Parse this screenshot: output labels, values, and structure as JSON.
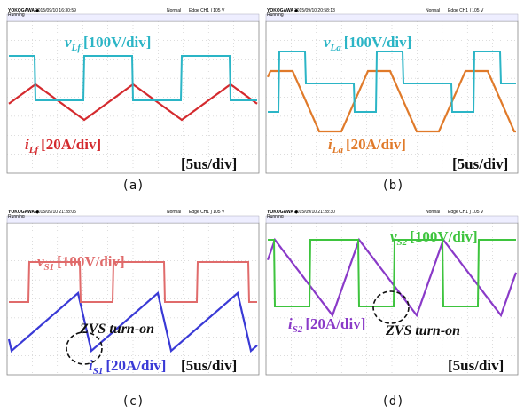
{
  "panels": [
    {
      "caption": "(a)",
      "scope_header": {
        "brand": "YOKOGAWA ◆",
        "timestamp": "2015/09/10 16:30:59",
        "status": "Running",
        "mode": "Normal",
        "trigger": "Edge CH1 ∫ 105 V"
      },
      "voltage_label": {
        "symbol": "v",
        "sub": "Lf",
        "scale": "[100V/div]"
      },
      "current_label": {
        "symbol": "i",
        "sub": "Lf",
        "scale": "[20A/div]"
      },
      "time_scale": "[5us/div]"
    },
    {
      "caption": "(b)",
      "scope_header": {
        "brand": "YOKOGAWA ◆",
        "timestamp": "2015/09/10 20:58:13",
        "status": "Running",
        "mode": "Normal",
        "trigger": "Edge CH1 ∫ 105 V"
      },
      "voltage_label": {
        "symbol": "v",
        "sub": "La",
        "scale": "[100V/div]"
      },
      "current_label": {
        "symbol": "i",
        "sub": "La",
        "scale": "[20A/div]"
      },
      "time_scale": "[5us/div]"
    },
    {
      "caption": "(c)",
      "scope_header": {
        "brand": "YOKOGAWA ◆",
        "timestamp": "2015/09/10 21:28:05",
        "status": "Running",
        "mode": "Normal",
        "trigger": "Edge CH1 ∫ 105 V"
      },
      "voltage_label": {
        "symbol": "v",
        "sub": "S1",
        "scale": "[100V/div]"
      },
      "current_label": {
        "symbol": "i",
        "sub": "S1",
        "scale": "[20A/div]"
      },
      "annotation": "ZVS turn-on",
      "time_scale": "[5us/div]"
    },
    {
      "caption": "(d)",
      "scope_header": {
        "brand": "YOKOGAWA ◆",
        "timestamp": "2015/09/10 21:28:30",
        "status": "Running",
        "mode": "Normal",
        "trigger": "Edge CH1 ∫ 105 V"
      },
      "voltage_label": {
        "symbol": "v",
        "sub": "S2",
        "scale": "[100V/div]"
      },
      "current_label": {
        "symbol": "i",
        "sub": "S2",
        "scale": "[20A/div]"
      },
      "annotation": "ZVS turn-on",
      "time_scale": "[5us/div]"
    }
  ]
}
